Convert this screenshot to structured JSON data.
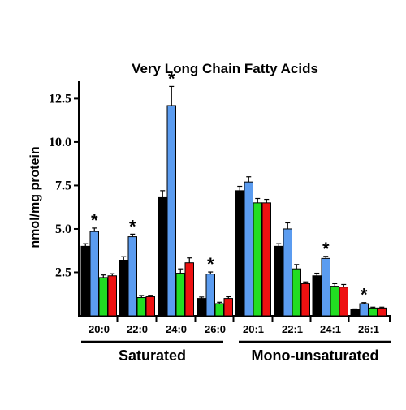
{
  "chart_data": {
    "type": "bar",
    "title": "Very Long Chain Fatty Acids",
    "xlabel": "",
    "ylabel": "nmol/mg protein",
    "yticks": [
      "2.5",
      "5.0",
      "7.5",
      "10.0",
      "12.5"
    ],
    "ylim": [
      0,
      13.5
    ],
    "grid": false,
    "categories": [
      "20:0",
      "22:0",
      "24:0",
      "26:0",
      "20:1",
      "22:1",
      "24:1",
      "26:1"
    ],
    "groups": [
      {
        "label": "Saturated",
        "categories": [
          "20:0",
          "22:0",
          "24:0",
          "26:0"
        ]
      },
      {
        "label": "Mono-unsaturated",
        "categories": [
          "20:1",
          "22:1",
          "24:1",
          "26:1"
        ]
      }
    ],
    "series": [
      {
        "color": "#000000",
        "values": [
          4.0,
          3.2,
          6.8,
          1.0,
          7.2,
          4.0,
          2.3,
          0.35
        ],
        "errors": [
          0.15,
          0.2,
          0.4,
          0.08,
          0.25,
          0.15,
          0.15,
          0.05
        ]
      },
      {
        "color": "#5b9cf0",
        "values": [
          4.85,
          4.55,
          12.1,
          2.4,
          7.7,
          5.0,
          3.3,
          0.7
        ],
        "errors": [
          0.2,
          0.15,
          1.1,
          0.12,
          0.3,
          0.35,
          0.12,
          0.06
        ]
      },
      {
        "color": "#22dd22",
        "values": [
          2.2,
          1.05,
          2.45,
          0.7,
          6.5,
          2.7,
          1.7,
          0.45
        ],
        "errors": [
          0.15,
          0.12,
          0.25,
          0.08,
          0.25,
          0.25,
          0.15,
          0.05
        ]
      },
      {
        "color": "#ee1111",
        "values": [
          2.3,
          1.1,
          3.05,
          1.0,
          6.5,
          1.85,
          1.65,
          0.45
        ],
        "errors": [
          0.12,
          0.08,
          0.28,
          0.1,
          0.2,
          0.1,
          0.15,
          0.05
        ]
      }
    ],
    "significance": {
      "marker": "*",
      "indices": [
        0,
        1,
        2,
        3,
        6,
        7
      ]
    }
  }
}
